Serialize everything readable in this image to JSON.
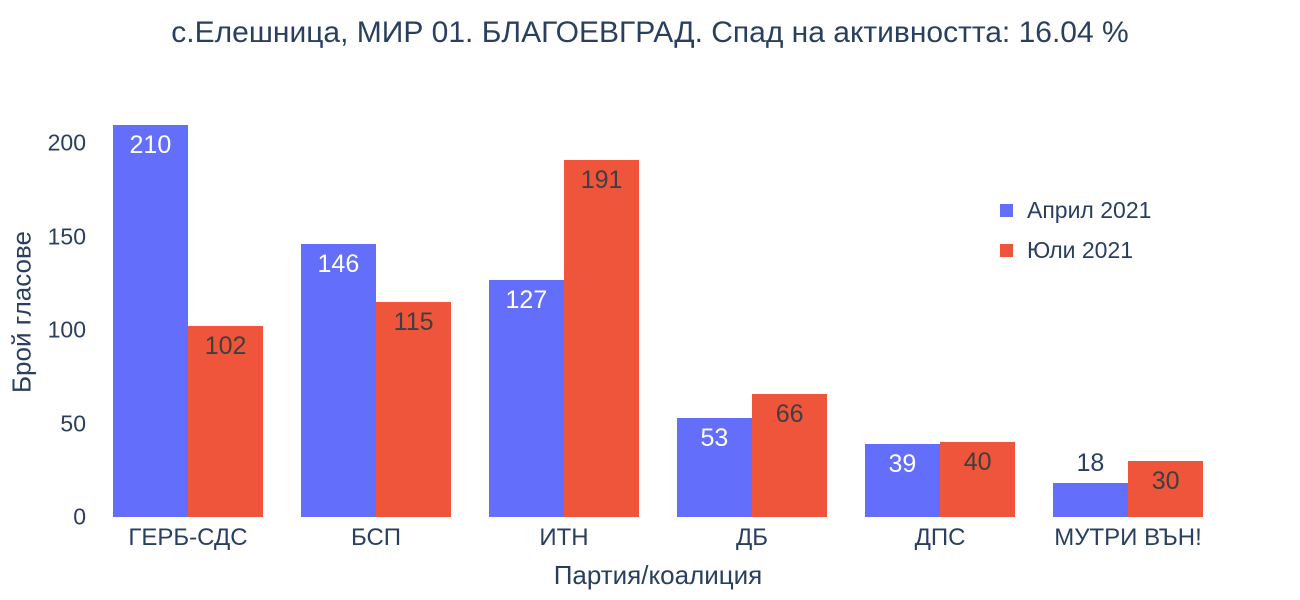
{
  "chart_data": {
    "type": "bar",
    "title": "с.Елешница, МИР 01. БЛАГОЕВГРАД. Спад на активността: 16.04 %",
    "xlabel": "Партия/коалиция",
    "ylabel": "Брой гласове",
    "categories": [
      "ГЕРБ-СДС",
      "БСП",
      "ИТН",
      "ДБ",
      "ДПС",
      "МУТРИ ВЪН!"
    ],
    "series": [
      {
        "name": "Април 2021",
        "color": "#636EFA",
        "inside_label_color": "#ffffff",
        "values": [
          210,
          146,
          127,
          53,
          39,
          18
        ]
      },
      {
        "name": "Юли 2021",
        "color": "#EF553B",
        "inside_label_color": "#3f3f3f",
        "values": [
          102,
          115,
          191,
          66,
          40,
          30
        ]
      }
    ],
    "ylim": [
      0,
      220
    ],
    "yticks": [
      0,
      50,
      100,
      150,
      200
    ],
    "grid": false,
    "legend_position": "right-upper",
    "background": "#ffffff",
    "text_color": "#2a3f5f",
    "bar_value_labels": true
  }
}
